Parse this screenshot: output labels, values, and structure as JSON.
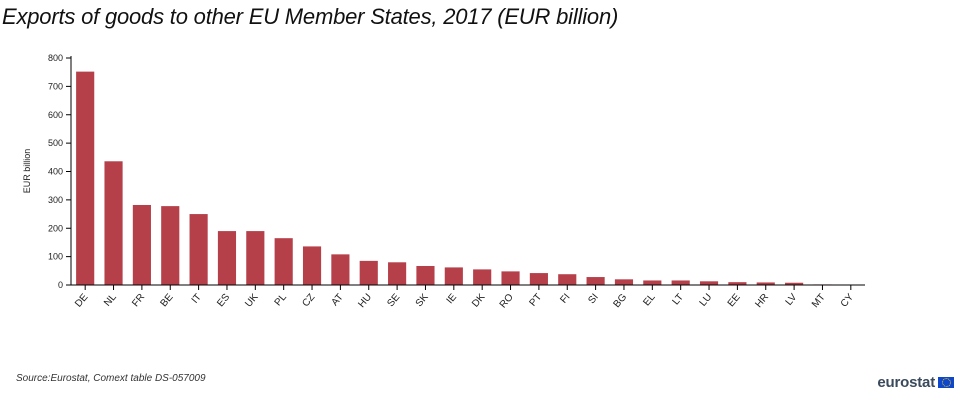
{
  "title": "Exports of goods to other EU Member States, 2017 (EUR billion)",
  "source": "Source:Eurostat, Comext table DS-057009",
  "logo": {
    "text": "eurostat",
    "icon": "eu-flag-icon"
  },
  "colors": {
    "bar": "#b5404a",
    "axis": "#000000",
    "text": "#222222"
  },
  "chart_data": {
    "type": "bar",
    "title": "Exports of goods to other EU Member States, 2017 (EUR billion)",
    "xlabel": "",
    "ylabel": "EUR billion",
    "ylim": [
      0,
      800
    ],
    "yticks": [
      0,
      100,
      200,
      300,
      400,
      500,
      600,
      700,
      800
    ],
    "grid": false,
    "categories": [
      "DE",
      "NL",
      "FR",
      "BE",
      "IT",
      "ES",
      "UK",
      "PL",
      "CZ",
      "AT",
      "HU",
      "SE",
      "SK",
      "IE",
      "DK",
      "RO",
      "PT",
      "FI",
      "SI",
      "BG",
      "EL",
      "LT",
      "LU",
      "EE",
      "HR",
      "LV",
      "MT",
      "CY"
    ],
    "values": [
      752,
      436,
      282,
      278,
      250,
      190,
      190,
      165,
      136,
      108,
      85,
      80,
      67,
      62,
      55,
      48,
      42,
      38,
      28,
      20,
      16,
      16,
      13,
      10,
      9,
      8,
      2,
      1
    ]
  }
}
